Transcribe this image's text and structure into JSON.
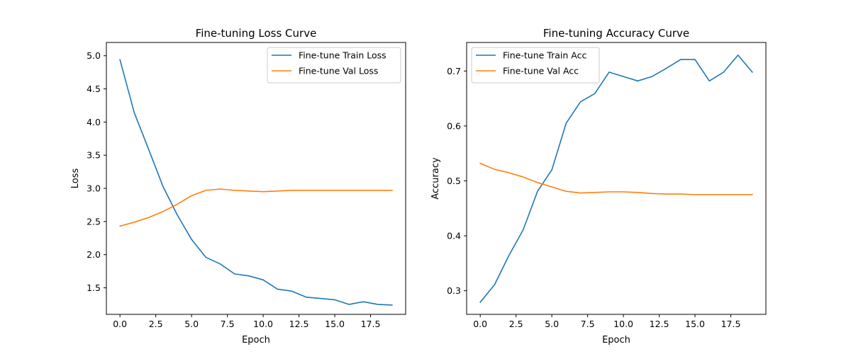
{
  "chart_data": [
    {
      "type": "line",
      "title": "Fine-tuning Loss Curve",
      "xlabel": "Epoch",
      "ylabel": "Loss",
      "xlim": [
        -0.95,
        19.95
      ],
      "ylim": [
        1.1,
        5.2
      ],
      "xticks": [
        0,
        2.5,
        5,
        7.5,
        10,
        12.5,
        15,
        17.5
      ],
      "xtick_labels": [
        "0.0",
        "2.5",
        "5.0",
        "7.5",
        "10.0",
        "12.5",
        "15.0",
        "17.5"
      ],
      "yticks": [
        1.5,
        2.0,
        2.5,
        3.0,
        3.5,
        4.0,
        4.5,
        5.0
      ],
      "ytick_labels": [
        "1.5",
        "2.0",
        "2.5",
        "3.0",
        "3.5",
        "4.0",
        "4.5",
        "5.0"
      ],
      "legend_position": "top-right",
      "x": [
        0,
        1,
        2,
        3,
        4,
        5,
        6,
        7,
        8,
        9,
        10,
        11,
        12,
        13,
        14,
        15,
        16,
        17,
        18,
        19
      ],
      "series": [
        {
          "name": "Fine-tune Train Loss",
          "color": "#1f77b4",
          "values": [
            4.94,
            4.14,
            3.59,
            3.03,
            2.6,
            2.23,
            1.96,
            1.86,
            1.71,
            1.68,
            1.62,
            1.48,
            1.45,
            1.36,
            1.34,
            1.32,
            1.25,
            1.29,
            1.25,
            1.24
          ]
        },
        {
          "name": "Fine-tune Val Loss",
          "color": "#ff7f0e",
          "values": [
            2.43,
            2.49,
            2.56,
            2.65,
            2.76,
            2.89,
            2.97,
            2.99,
            2.97,
            2.96,
            2.95,
            2.96,
            2.97,
            2.97,
            2.97,
            2.97,
            2.97,
            2.97,
            2.97,
            2.97
          ]
        }
      ]
    },
    {
      "type": "line",
      "title": "Fine-tuning Accuracy Curve",
      "xlabel": "Epoch",
      "ylabel": "Accuracy",
      "xlim": [
        -0.95,
        19.95
      ],
      "ylim": [
        0.257,
        0.752
      ],
      "xticks": [
        0,
        2.5,
        5,
        7.5,
        10,
        12.5,
        15,
        17.5
      ],
      "xtick_labels": [
        "0.0",
        "2.5",
        "5.0",
        "7.5",
        "10.0",
        "12.5",
        "15.0",
        "17.5"
      ],
      "yticks": [
        0.3,
        0.4,
        0.5,
        0.6,
        0.7
      ],
      "ytick_labels": [
        "0.3",
        "0.4",
        "0.5",
        "0.6",
        "0.7"
      ],
      "legend_position": "top-left",
      "x": [
        0,
        1,
        2,
        3,
        4,
        5,
        6,
        7,
        8,
        9,
        10,
        11,
        12,
        13,
        14,
        15,
        16,
        17,
        18,
        19
      ],
      "series": [
        {
          "name": "Fine-tune Train Acc",
          "color": "#1f77b4",
          "values": [
            0.279,
            0.311,
            0.364,
            0.411,
            0.481,
            0.52,
            0.605,
            0.644,
            0.659,
            0.698,
            0.69,
            0.682,
            0.69,
            0.705,
            0.721,
            0.721,
            0.682,
            0.698,
            0.729,
            0.698
          ]
        },
        {
          "name": "Fine-tune Val Acc",
          "color": "#ff7f0e",
          "values": [
            0.532,
            0.521,
            0.515,
            0.507,
            0.497,
            0.489,
            0.481,
            0.478,
            0.479,
            0.48,
            0.48,
            0.479,
            0.477,
            0.476,
            0.476,
            0.475,
            0.475,
            0.475,
            0.475,
            0.475
          ]
        }
      ]
    }
  ]
}
